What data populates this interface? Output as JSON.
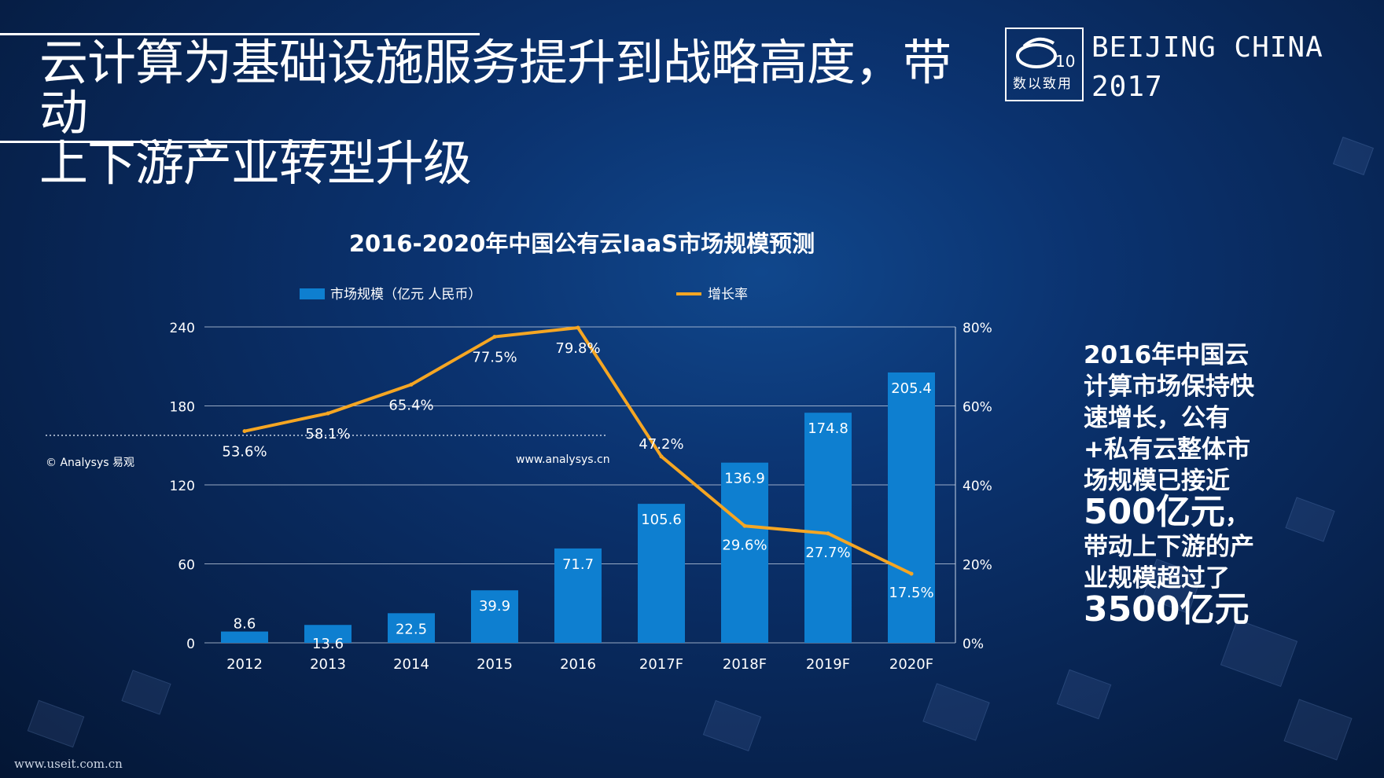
{
  "slide": {
    "title_line1": "云计算为基础设施服务提升到战略高度，带动",
    "title_line2": "上下游产业转型升级",
    "logo_text": "数以致用",
    "event_line1": "BEIJING CHINA",
    "event_line2": "2017",
    "source_url": "www.useit.com.cn",
    "colors": {
      "background": "#0b3370",
      "bar": "#0e7fd0",
      "line": "#f5a623",
      "text": "#ffffff"
    }
  },
  "side_note": {
    "part1": "2016年中国云计算市场保持快速增长，公有+私有云整体市场规模已接近",
    "big1": "500亿元",
    "part2": "，带动上下游的产业规模超过了",
    "big2": "3500亿元"
  },
  "chart_data": {
    "type": "bar",
    "title": "2016-2020年中国公有云IaaS市场规模预测",
    "categories": [
      "2012",
      "2013",
      "2014",
      "2015",
      "2016",
      "2017F",
      "2018F",
      "2019F",
      "2020F"
    ],
    "series": [
      {
        "name": "市场规模（亿元 人民币）",
        "type": "bar",
        "axis": "left",
        "values": [
          8.6,
          13.6,
          22.5,
          39.9,
          71.7,
          105.6,
          136.9,
          174.8,
          205.4
        ],
        "labels": [
          "8.6",
          "13.6",
          "22.5",
          "39.9",
          "71.7",
          "105.6",
          "136.9",
          "174.8",
          "205.4"
        ]
      },
      {
        "name": "增长率",
        "type": "line",
        "axis": "right",
        "values": [
          53.6,
          58.1,
          65.4,
          77.5,
          79.8,
          47.2,
          29.6,
          27.7,
          17.5
        ],
        "labels": [
          "53.6%",
          "58.1%",
          "65.4%",
          "77.5%",
          "79.8%",
          "47.2%",
          "29.6%",
          "27.7%",
          "17.5%"
        ]
      }
    ],
    "y_left": {
      "ticks": [
        "0",
        "60",
        "120",
        "180",
        "240"
      ],
      "range": [
        0,
        240
      ]
    },
    "y_right": {
      "ticks": [
        "0%",
        "20%",
        "40%",
        "60%",
        "80%"
      ],
      "range": [
        0,
        80
      ]
    },
    "grid": true,
    "legend_position": "top",
    "watermark": "© Analysys 易观",
    "website": "www.analysys.cn"
  }
}
